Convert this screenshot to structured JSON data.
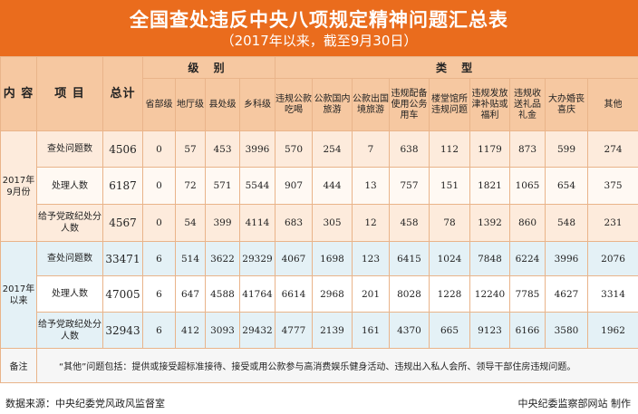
{
  "header": {
    "title": "全国查处违反中央八项规定精神问题汇总表",
    "subtitle": "（2017年以来，截至9月30日）"
  },
  "table": {
    "col_content": "内 容",
    "col_item": "项 目",
    "col_total": "总计",
    "group_level": "级 别",
    "group_type": "类 型",
    "level_cols": [
      "省部级",
      "地厅级",
      "县处级",
      "乡科级"
    ],
    "type_cols": [
      "违规公款吃喝",
      "公款国内旅游",
      "公款出国境旅游",
      "违规配备使用公务用车",
      "楼堂馆所违规问题",
      "违规发放津补贴或福利",
      "违规收送礼品礼金",
      "大办婚丧喜庆",
      "其他"
    ],
    "periods": [
      {
        "label": "2017年9月份",
        "rows": [
          {
            "item": "查处问题数",
            "total": "4506",
            "values": [
              "0",
              "57",
              "453",
              "3996",
              "570",
              "254",
              "7",
              "638",
              "112",
              "1179",
              "873",
              "599",
              "274"
            ]
          },
          {
            "item": "处理人数",
            "total": "6187",
            "values": [
              "0",
              "72",
              "571",
              "5544",
              "907",
              "444",
              "13",
              "757",
              "151",
              "1821",
              "1065",
              "654",
              "375"
            ]
          },
          {
            "item": "给予党政纪处分人数",
            "total": "4567",
            "values": [
              "0",
              "54",
              "399",
              "4114",
              "683",
              "305",
              "12",
              "458",
              "78",
              "1392",
              "860",
              "548",
              "231"
            ]
          }
        ]
      },
      {
        "label": "2017年以来",
        "rows": [
          {
            "item": "查处问题数",
            "total": "33471",
            "values": [
              "6",
              "514",
              "3622",
              "29329",
              "4067",
              "1698",
              "123",
              "6415",
              "1024",
              "7848",
              "6224",
              "3996",
              "2076"
            ]
          },
          {
            "item": "处理人数",
            "total": "47005",
            "values": [
              "6",
              "647",
              "4588",
              "41764",
              "6614",
              "2968",
              "201",
              "8028",
              "1228",
              "12240",
              "7785",
              "4627",
              "3314"
            ]
          },
          {
            "item": "给予党政纪处分人数",
            "total": "32943",
            "values": [
              "6",
              "412",
              "3093",
              "29432",
              "4777",
              "2139",
              "161",
              "4370",
              "665",
              "9123",
              "6166",
              "3580",
              "1962"
            ]
          }
        ]
      }
    ],
    "note_label": "备注",
    "note_text": "“其他”问题包括：提供或接受超标准接待、接受或用公款参与高消费娱乐健身活动、违规出入私人会所、领导干部住房违规问题。"
  },
  "footer": {
    "source": "数据来源：中央纪委党风政风监督室",
    "credit": "中央纪委监察部网站 制作"
  }
}
